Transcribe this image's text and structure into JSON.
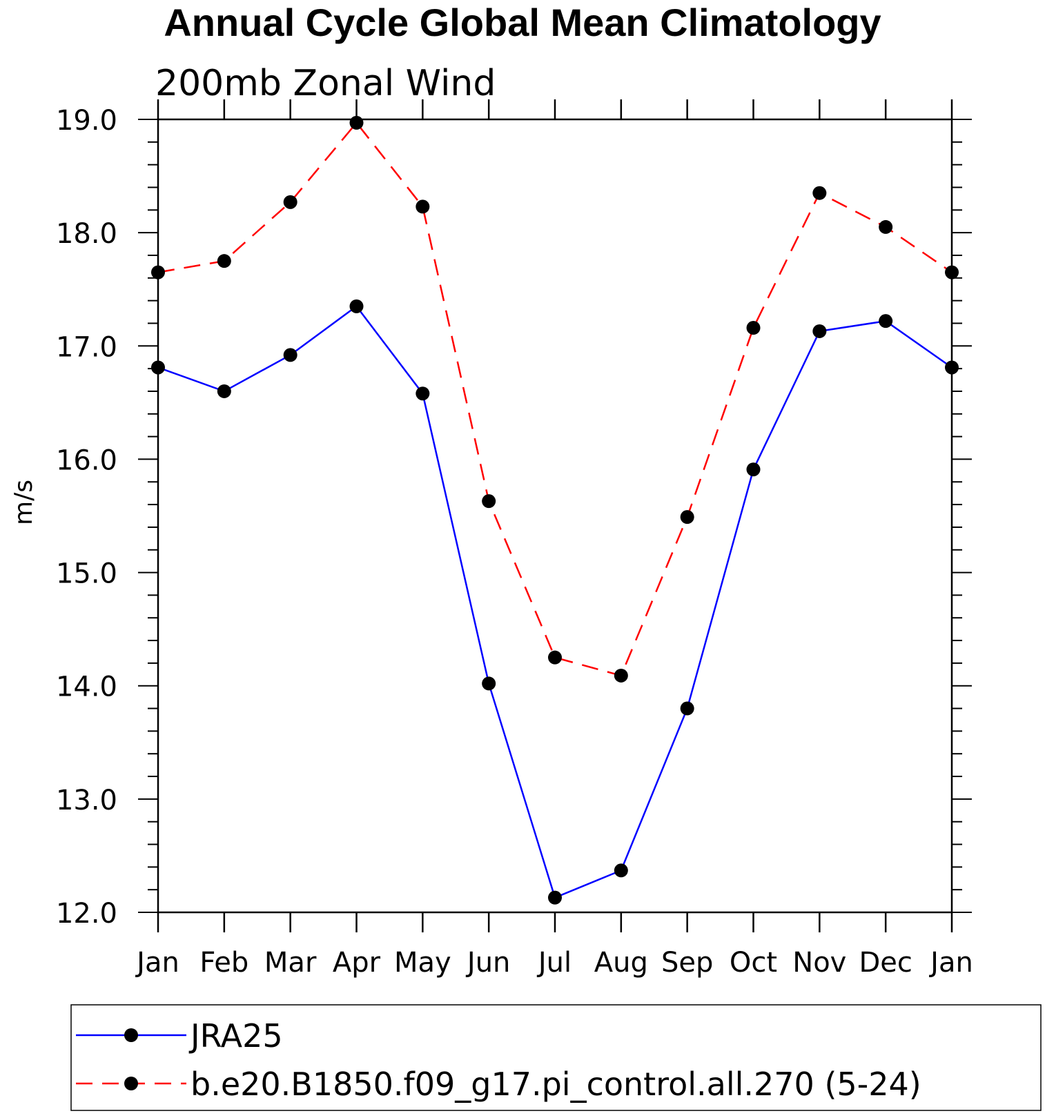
{
  "chart_data": {
    "type": "line",
    "title": "Annual Cycle Global Mean Climatology",
    "subtitle": "200mb Zonal Wind",
    "ylabel": "m/s",
    "xlabel": "",
    "categories": [
      "Jan",
      "Feb",
      "Mar",
      "Apr",
      "May",
      "Jun",
      "Jul",
      "Aug",
      "Sep",
      "Oct",
      "Nov",
      "Dec",
      "Jan"
    ],
    "ylim": [
      12.0,
      19.0
    ],
    "yticks": [
      "12.0",
      "13.0",
      "14.0",
      "15.0",
      "16.0",
      "17.0",
      "18.0",
      "19.0"
    ],
    "grid": false,
    "legend_position": "bottom",
    "series": [
      {
        "name": "JRA25",
        "color": "#0000ff",
        "line_style": "solid",
        "marker": "filled-circle",
        "values": [
          16.81,
          16.6,
          16.92,
          17.35,
          16.58,
          14.02,
          12.13,
          12.37,
          13.8,
          15.91,
          17.13,
          17.22,
          16.81
        ]
      },
      {
        "name": "b.e20.B1850.f09_g17.pi_control.all.270 (5-24)",
        "color": "#ff0000",
        "line_style": "dashed",
        "marker": "filled-circle",
        "values": [
          17.65,
          17.75,
          18.27,
          18.97,
          18.23,
          15.63,
          14.25,
          14.09,
          15.49,
          17.16,
          18.35,
          18.05,
          17.65
        ]
      }
    ]
  }
}
